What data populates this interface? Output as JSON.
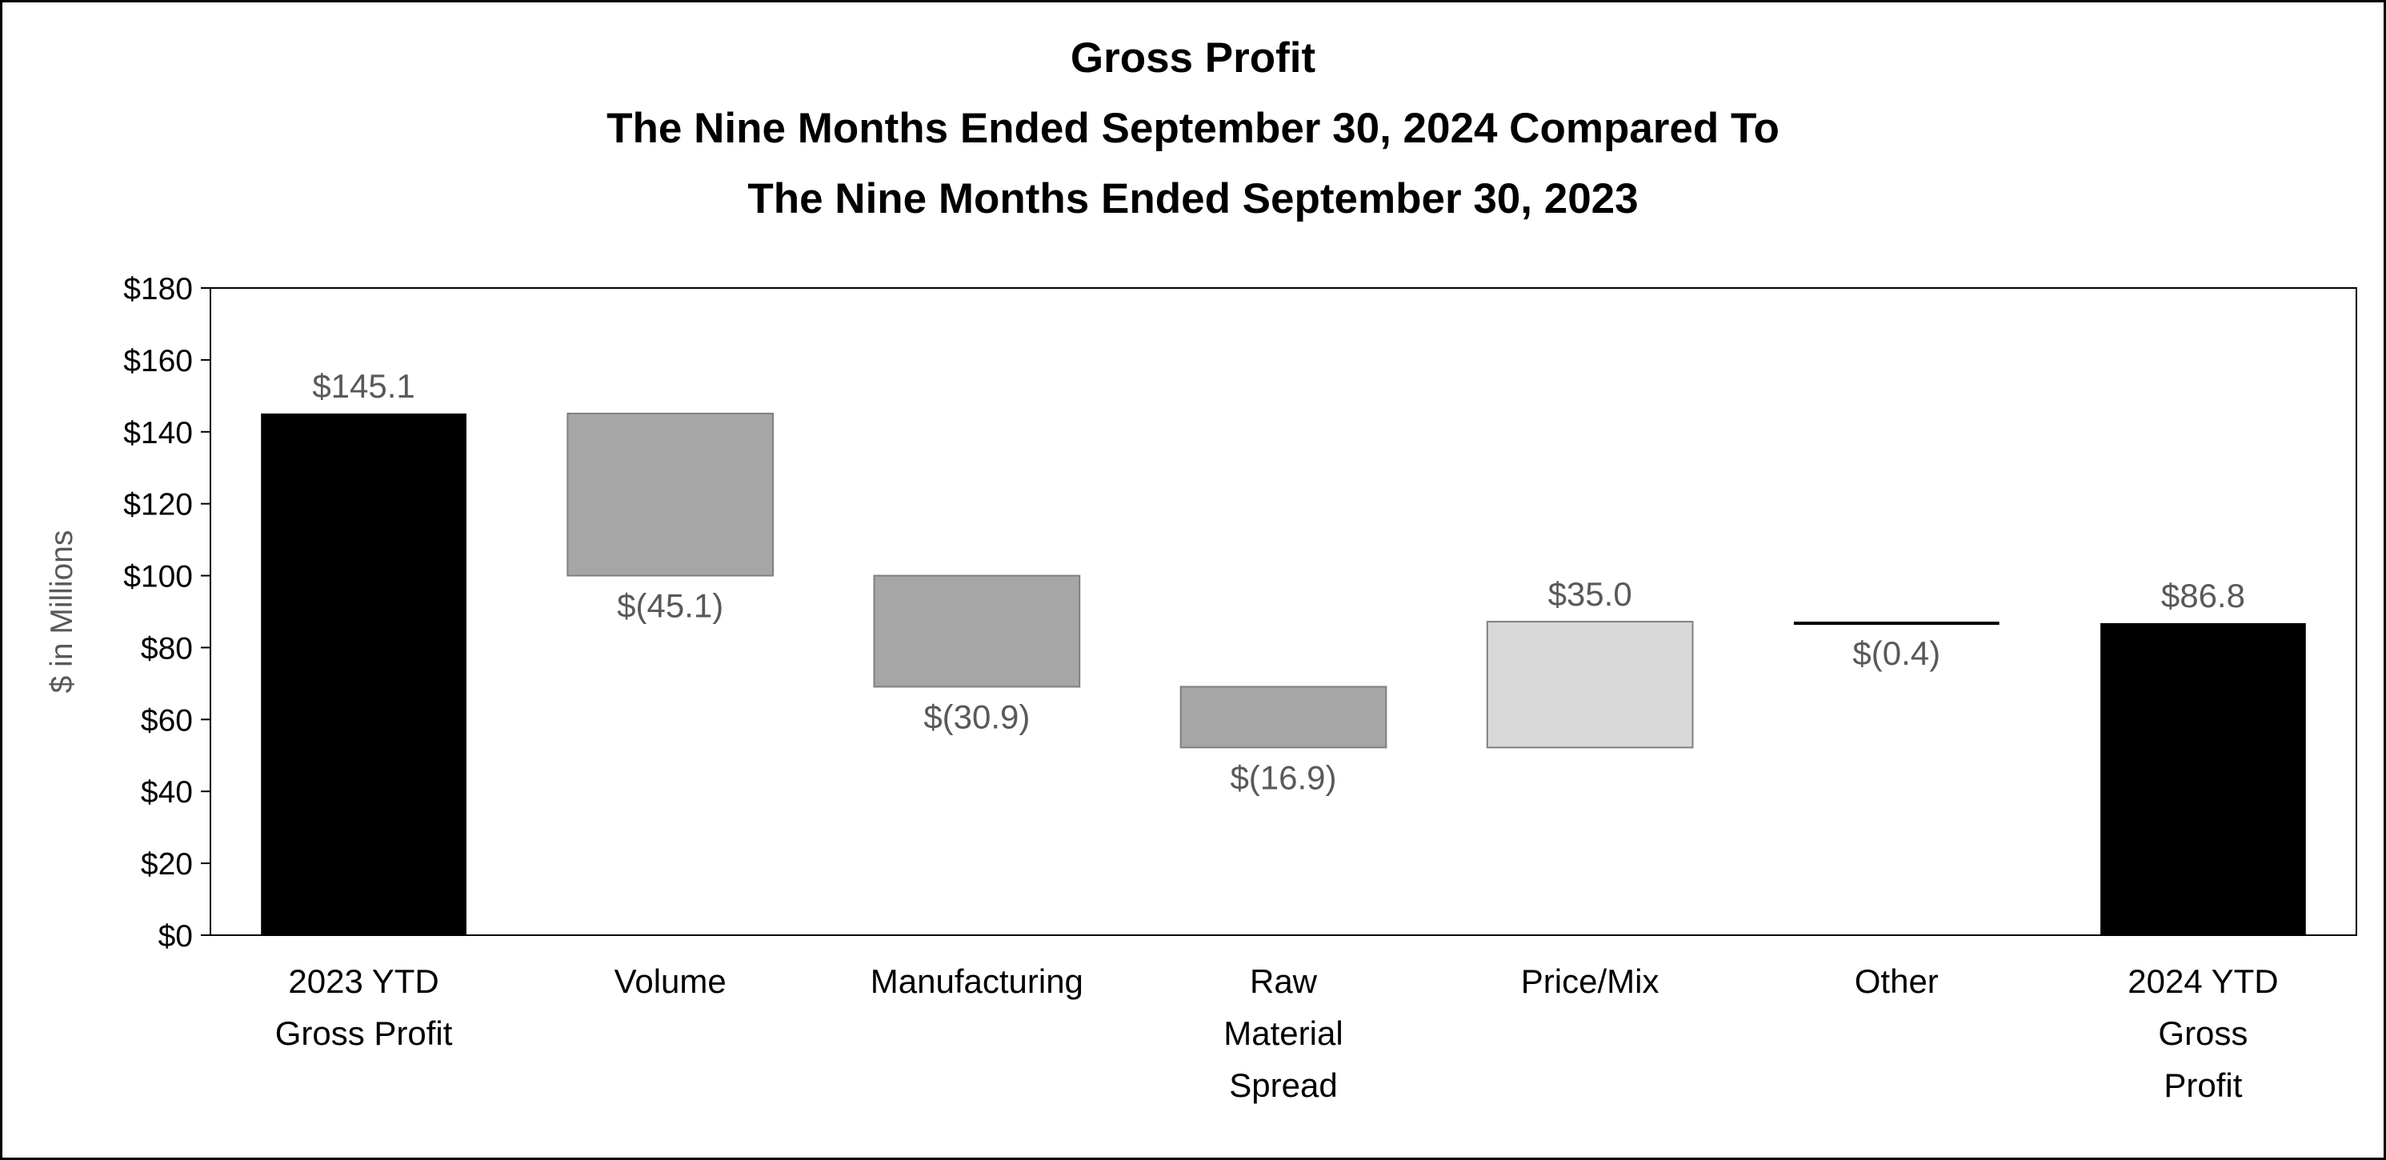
{
  "chart_data": {
    "type": "bar",
    "subtype": "waterfall",
    "title": [
      "Gross Profit",
      "The Nine Months Ended September 30, 2024 Compared To",
      "The Nine Months Ended September 30, 2023"
    ],
    "ylabel": "$ in Millions",
    "xlabel": "",
    "ylim": [
      0,
      180
    ],
    "ytick_step": 20,
    "ytick_labels": [
      "$0",
      "$20",
      "$40",
      "$60",
      "$80",
      "$100",
      "$120",
      "$140",
      "$160",
      "$180"
    ],
    "grid": false,
    "legend": "none",
    "bars": [
      {
        "category": [
          "2023 YTD",
          "Gross Profit"
        ],
        "start": 0,
        "end": 145.1,
        "kind": "total",
        "label": "$145.1",
        "label_pos": "above"
      },
      {
        "category": [
          "Volume"
        ],
        "start": 145.1,
        "end": 100.0,
        "kind": "decrease",
        "label": "$(45.1)",
        "label_pos": "below"
      },
      {
        "category": [
          "Manufacturing"
        ],
        "start": 100.0,
        "end": 69.1,
        "kind": "decrease",
        "label": "$(30.9)",
        "label_pos": "below"
      },
      {
        "category": [
          "Raw",
          "Material",
          "Spread"
        ],
        "start": 69.1,
        "end": 52.2,
        "kind": "decrease",
        "label": "$(16.9)",
        "label_pos": "below"
      },
      {
        "category": [
          "Price/Mix"
        ],
        "start": 52.2,
        "end": 87.2,
        "kind": "increase",
        "label": "$35.0",
        "label_pos": "above"
      },
      {
        "category": [
          "Other"
        ],
        "start": 87.2,
        "end": 86.8,
        "kind": "decrease",
        "label": "$(0.4)",
        "label_pos": "below"
      },
      {
        "category": [
          "2024 YTD",
          "Gross",
          "Profit"
        ],
        "start": 0,
        "end": 86.8,
        "kind": "total",
        "label": "$86.8",
        "label_pos": "above"
      }
    ],
    "colors": {
      "total": "#000000",
      "decrease": "#a6a6a6",
      "increase": "#d9d9d9",
      "edge": "#7f7f7f",
      "label": "#595959",
      "axis": "#000000"
    }
  }
}
